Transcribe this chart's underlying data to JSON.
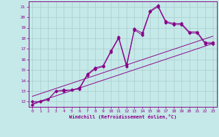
{
  "xlabel": "Windchill (Refroidissement éolien,°C)",
  "background_color": "#c5e8e8",
  "line_color": "#880088",
  "grid_color": "#a8cccc",
  "xlim": [
    -0.5,
    23.5
  ],
  "ylim": [
    11.5,
    21.5
  ],
  "xticks": [
    0,
    1,
    2,
    3,
    4,
    5,
    6,
    7,
    8,
    9,
    10,
    11,
    12,
    13,
    14,
    15,
    16,
    17,
    18,
    19,
    20,
    21,
    22,
    23
  ],
  "yticks": [
    12,
    13,
    14,
    15,
    16,
    17,
    18,
    19,
    20,
    21
  ],
  "line1_x": [
    0,
    1,
    2,
    3,
    4,
    5,
    6,
    7,
    8,
    9,
    10,
    11,
    12,
    13,
    14,
    15,
    16,
    17,
    18,
    19,
    20,
    21,
    22,
    23
  ],
  "line1_y": [
    11.7,
    12.0,
    12.2,
    13.0,
    13.0,
    13.1,
    13.2,
    14.5,
    15.1,
    15.3,
    16.7,
    18.0,
    15.3,
    18.8,
    18.3,
    20.5,
    21.0,
    19.5,
    19.3,
    19.3,
    18.5,
    18.5,
    17.5,
    17.5
  ],
  "line2_x": [
    0,
    1,
    2,
    3,
    4,
    5,
    6,
    7,
    8,
    9,
    10,
    11,
    12,
    13,
    14,
    15,
    16,
    17,
    18,
    19,
    20,
    21,
    22,
    23
  ],
  "line2_y": [
    12.0,
    12.0,
    12.2,
    13.0,
    13.1,
    13.1,
    13.3,
    14.6,
    15.2,
    15.4,
    16.8,
    18.1,
    15.5,
    18.9,
    18.5,
    20.6,
    21.1,
    19.6,
    19.4,
    19.4,
    18.6,
    18.6,
    17.6,
    17.6
  ],
  "line3_x": [
    0,
    23
  ],
  "line3_y": [
    11.8,
    17.5
  ],
  "line4_x": [
    0,
    23
  ],
  "line4_y": [
    12.5,
    18.2
  ]
}
